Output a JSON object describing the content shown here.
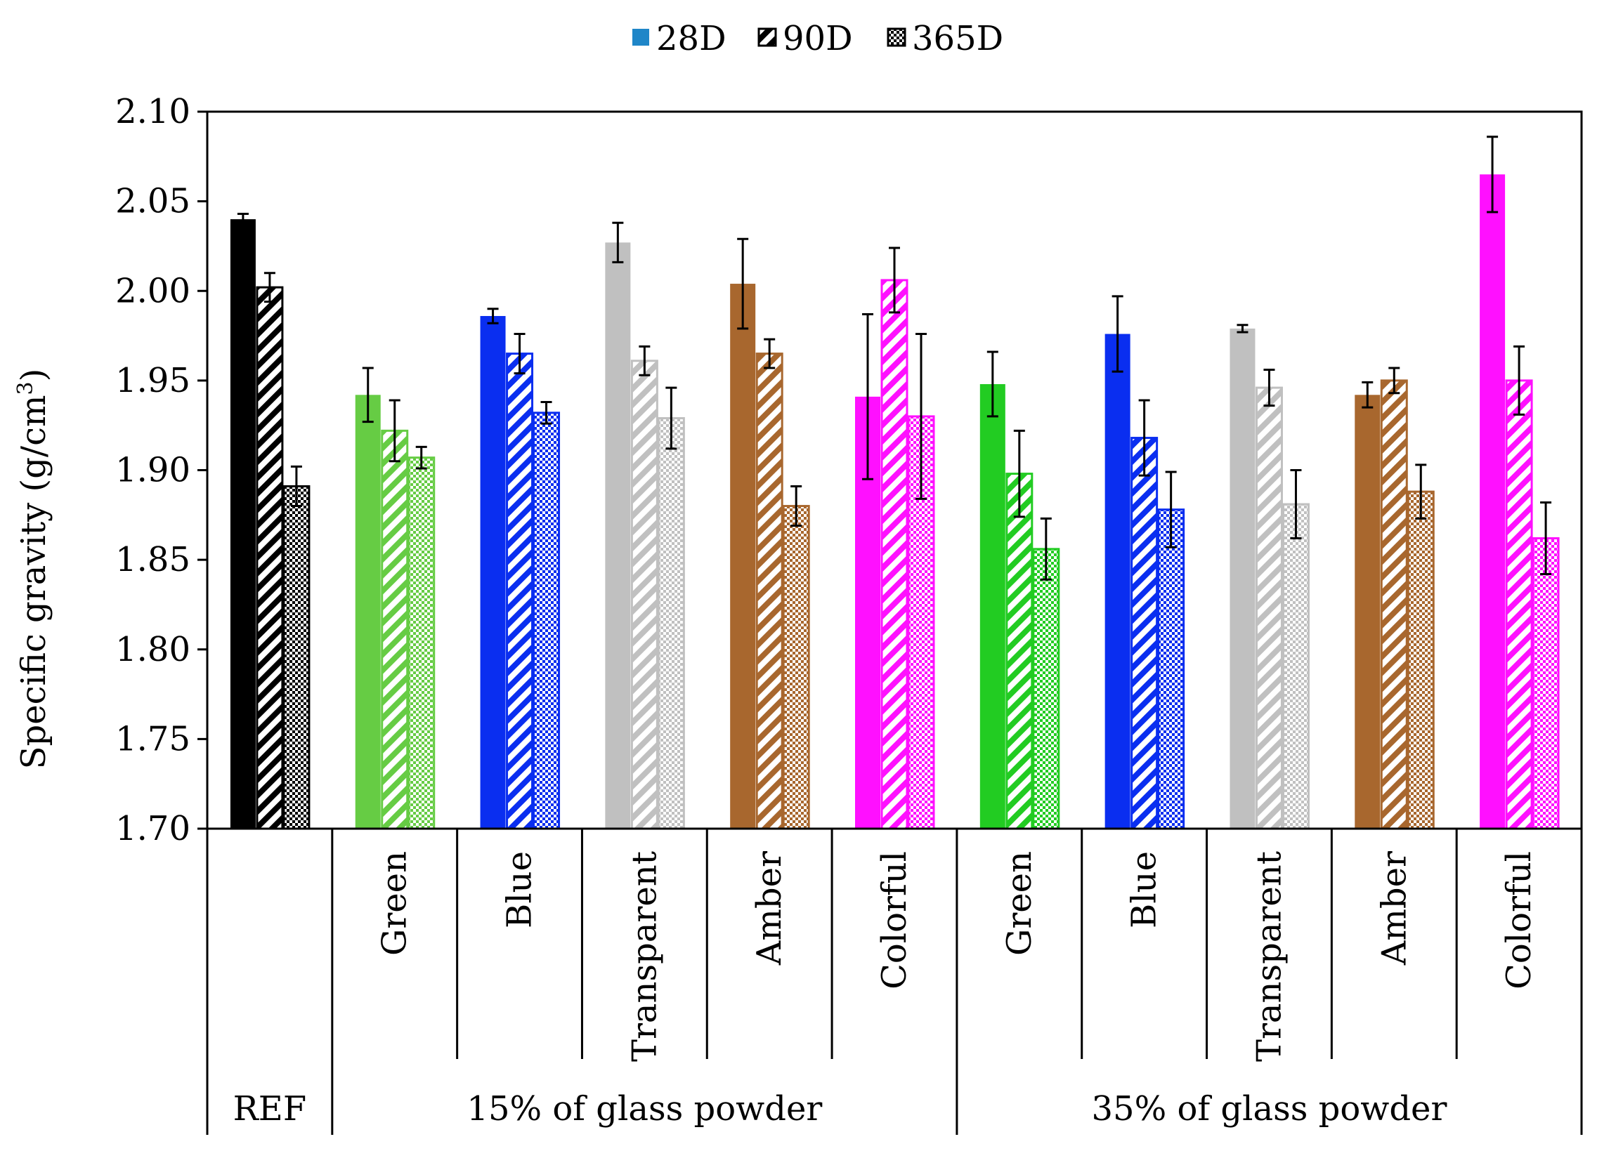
{
  "chart_data": {
    "type": "bar",
    "title": "",
    "ylabel": "Specific gravity (g/cm³)",
    "ylabel_main": "Specific gravity (g/cm",
    "ylabel_sup": "3",
    "ylabel_close": ")",
    "ylim": [
      1.7,
      2.1
    ],
    "yticks": [
      "1.70",
      "1.75",
      "1.80",
      "1.85",
      "1.90",
      "1.95",
      "2.00",
      "2.05",
      "2.10"
    ],
    "grid": false,
    "legend_position": "top-center",
    "series_names": [
      "28D",
      "90D",
      "365D"
    ],
    "series_patterns": [
      "solid",
      "diagonal-stripes",
      "checkered"
    ],
    "groups": [
      {
        "label": "REF",
        "categories": [
          0
        ]
      },
      {
        "label": "15% of glass powder",
        "categories": [
          1,
          2,
          3,
          4,
          5
        ]
      },
      {
        "label": "35% of glass powder",
        "categories": [
          6,
          7,
          8,
          9,
          10
        ]
      }
    ],
    "categories": [
      {
        "label": "",
        "color": "#000000",
        "values": [
          2.04,
          2.002,
          1.891
        ],
        "errors": [
          0.003,
          0.008,
          0.011
        ]
      },
      {
        "label": "Green",
        "color": "#66cc44",
        "values": [
          1.942,
          1.922,
          1.907
        ],
        "errors": [
          0.015,
          0.017,
          0.006
        ]
      },
      {
        "label": "Blue",
        "color": "#0a2ef0",
        "values": [
          1.986,
          1.965,
          1.932
        ],
        "errors": [
          0.004,
          0.011,
          0.006
        ]
      },
      {
        "label": "Transparent",
        "color": "#c0c0c0",
        "values": [
          2.027,
          1.961,
          1.929
        ],
        "errors": [
          0.011,
          0.008,
          0.017
        ]
      },
      {
        "label": "Amber",
        "color": "#a8672e",
        "values": [
          2.004,
          1.965,
          1.88
        ],
        "errors": [
          0.025,
          0.008,
          0.011
        ]
      },
      {
        "label": "Colorful",
        "color": "#ff10ff",
        "values": [
          1.941,
          2.006,
          1.93
        ],
        "errors": [
          0.046,
          0.018,
          0.046
        ]
      },
      {
        "label": "Green",
        "color": "#22cc22",
        "values": [
          1.948,
          1.898,
          1.856
        ],
        "errors": [
          0.018,
          0.024,
          0.017
        ]
      },
      {
        "label": "Blue",
        "color": "#0a2ef0",
        "values": [
          1.976,
          1.918,
          1.878
        ],
        "errors": [
          0.021,
          0.021,
          0.021
        ]
      },
      {
        "label": "Transparent",
        "color": "#c0c0c0",
        "values": [
          1.979,
          1.946,
          1.881
        ],
        "errors": [
          0.002,
          0.01,
          0.019
        ]
      },
      {
        "label": "Amber",
        "color": "#a8672e",
        "values": [
          1.942,
          1.95,
          1.888
        ],
        "errors": [
          0.007,
          0.007,
          0.015
        ]
      },
      {
        "label": "Colorful",
        "color": "#ff10ff",
        "values": [
          2.065,
          1.95,
          1.862
        ],
        "errors": [
          0.021,
          0.019,
          0.02
        ]
      }
    ]
  }
}
